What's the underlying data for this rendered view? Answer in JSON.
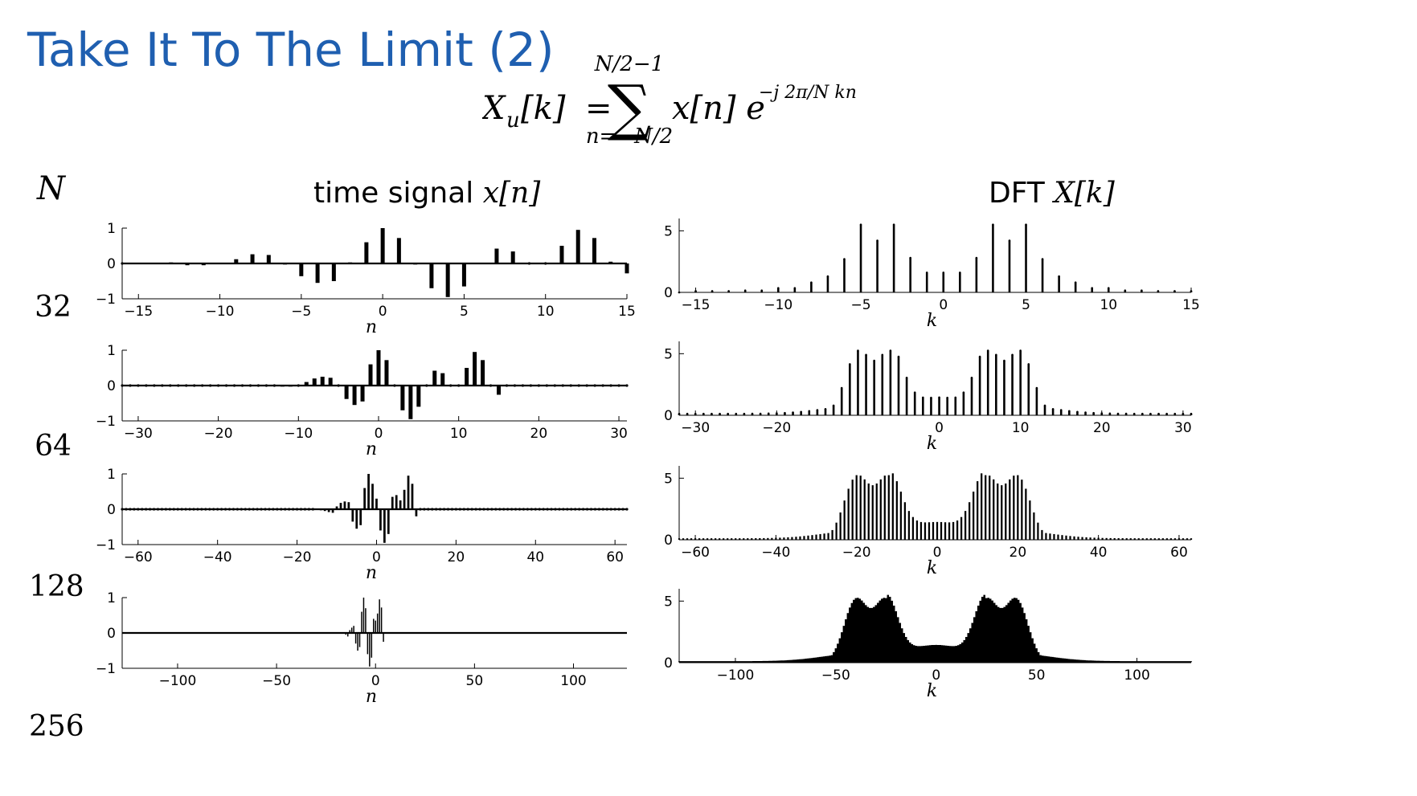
{
  "title": "Take It To The Limit (2)",
  "formula": {
    "lhs_base": "X",
    "lhs_sub": "u",
    "lhs_arg": "[k]",
    "equals": "=",
    "sum_upper": "N/2−1",
    "sum_lower": "n=−N/2",
    "term": "x[n] e",
    "exponent": "−j 2π/N kn"
  },
  "headers": {
    "n_label": "N",
    "time_prefix": "time signal ",
    "time_math": "x[n]",
    "dft_prefix": "DFT ",
    "dft_math": "X[k]"
  },
  "rows": [
    {
      "N": "32"
    },
    {
      "N": "64"
    },
    {
      "N": "128"
    },
    {
      "N": "256"
    }
  ],
  "chart_data": [
    {
      "type": "bar",
      "panel": "time",
      "N": 32,
      "xlabel": "n",
      "ylabel": "",
      "xlim": [
        -16,
        15
      ],
      "ylim": [
        -1,
        1
      ],
      "xticks": [
        -15,
        -10,
        -5,
        0,
        5,
        10,
        15
      ],
      "yticks": [
        -1,
        0,
        1
      ],
      "x": [
        -16,
        -15,
        -14,
        -13,
        -12,
        -11,
        -10,
        -9,
        -8,
        -7,
        -6,
        -5,
        -4,
        -3,
        -2,
        -1,
        0,
        1,
        2,
        3,
        4,
        5,
        6,
        7,
        8,
        9,
        10,
        11,
        12,
        13,
        14,
        15
      ],
      "values": [
        0.0,
        0.02,
        0.02,
        0.03,
        -0.05,
        -0.05,
        0.02,
        0.12,
        0.26,
        0.24,
        -0.03,
        -0.36,
        -0.55,
        -0.5,
        0.03,
        0.6,
        1.0,
        0.72,
        -0.03,
        -0.7,
        -0.95,
        -0.65,
        0.02,
        0.42,
        0.34,
        0.0,
        0.0,
        0.5,
        0.95,
        0.72,
        0.05,
        -0.28
      ]
    },
    {
      "type": "bar",
      "panel": "time",
      "N": 64,
      "xlabel": "n",
      "ylabel": "",
      "xlim": [
        -32,
        31
      ],
      "ylim": [
        -1,
        1
      ],
      "xticks": [
        -30,
        -20,
        -10,
        0,
        10,
        20,
        30
      ],
      "yticks": [
        -1,
        0,
        1
      ],
      "x": [
        -32,
        -31,
        -30,
        -29,
        -28,
        -27,
        -26,
        -25,
        -24,
        -23,
        -22,
        -21,
        -20,
        -19,
        -18,
        -17,
        -16,
        -15,
        -14,
        -13,
        -12,
        -11,
        -10,
        -9,
        -8,
        -7,
        -6,
        -5,
        -4,
        -3,
        -2,
        -1,
        0,
        1,
        2,
        3,
        4,
        5,
        6,
        7,
        8,
        9,
        10,
        11,
        12,
        13,
        14,
        15,
        16,
        17,
        18,
        19,
        20,
        21,
        22,
        23,
        24,
        25,
        26,
        27,
        28,
        29,
        30,
        31
      ],
      "values": [
        0,
        0,
        0,
        0,
        0,
        0,
        0,
        0,
        0,
        0,
        0,
        0,
        0,
        0,
        0,
        0,
        0,
        0,
        0,
        0,
        -0.03,
        -0.03,
        0,
        0.1,
        0.2,
        0.25,
        0.22,
        0,
        -0.38,
        -0.55,
        -0.45,
        0.6,
        1.0,
        0.72,
        0,
        -0.7,
        -0.95,
        -0.6,
        0,
        0.42,
        0.35,
        0,
        0,
        0.5,
        0.95,
        0.72,
        0,
        -0.26,
        0,
        0,
        0,
        0,
        0,
        0,
        0,
        0,
        0,
        0,
        0,
        0,
        0,
        0,
        0,
        0
      ]
    },
    {
      "type": "bar",
      "panel": "time",
      "N": 128,
      "xlabel": "n",
      "ylabel": "",
      "xlim": [
        -64,
        63
      ],
      "ylim": [
        -1,
        1
      ],
      "xticks": [
        -60,
        -40,
        -20,
        0,
        20,
        40,
        60
      ],
      "yticks": [
        -1,
        0,
        1
      ],
      "x": [
        -15,
        -14,
        -13,
        -12,
        -11,
        -10,
        -9,
        -8,
        -7,
        -6,
        -5,
        -4,
        -3,
        -2,
        -1,
        0,
        1,
        2,
        3,
        4,
        5,
        6,
        7,
        8,
        9,
        10,
        11,
        12,
        13,
        14,
        15
      ],
      "values": [
        -0.02,
        -0.03,
        -0.05,
        -0.08,
        -0.1,
        0.08,
        0.18,
        0.22,
        0.2,
        -0.35,
        -0.55,
        -0.45,
        0.6,
        1.0,
        0.72,
        0.3,
        -0.6,
        -0.95,
        -0.7,
        0.35,
        0.4,
        0.25,
        0.55,
        0.95,
        0.72,
        -0.2,
        0,
        0,
        0,
        0,
        0
      ]
    },
    {
      "type": "bar",
      "panel": "time",
      "N": 256,
      "xlabel": "n",
      "ylabel": "",
      "xlim": [
        -128,
        127
      ],
      "ylim": [
        -1,
        1
      ],
      "xticks": [
        -100,
        -50,
        0,
        50,
        100
      ],
      "yticks": [
        -1,
        0,
        1
      ],
      "x": [
        -15,
        -14,
        -13,
        -12,
        -11,
        -10,
        -9,
        -8,
        -7,
        -6,
        -5,
        -4,
        -3,
        -2,
        -1,
        0,
        1,
        2,
        3,
        4,
        5,
        6,
        7,
        8,
        9,
        10,
        11,
        12,
        13,
        14,
        15
      ],
      "values": [
        -0.05,
        -0.1,
        0.08,
        0.15,
        0.2,
        -0.3,
        -0.5,
        -0.4,
        0.6,
        1.0,
        0.7,
        -0.6,
        -0.95,
        -0.7,
        0.4,
        0.35,
        0.55,
        0.95,
        0.72,
        -0.25,
        0,
        0,
        0,
        0,
        0,
        0,
        0,
        0,
        0,
        0,
        0
      ]
    },
    {
      "type": "bar",
      "panel": "dft",
      "N": 32,
      "xlabel": "k",
      "ylabel": "",
      "xlim": [
        -16,
        15
      ],
      "ylim": [
        0,
        6
      ],
      "xticks": [
        -15,
        -10,
        -5,
        0,
        5,
        10,
        15
      ],
      "yticks": [
        0,
        5
      ],
      "x": [
        -16,
        -15,
        -14,
        -13,
        -12,
        -11,
        -10,
        -9,
        -8,
        -7,
        -6,
        -5,
        -4,
        -3,
        -2,
        -1,
        0,
        1,
        2,
        3,
        4,
        5,
        6,
        7,
        8,
        9,
        10,
        11,
        12,
        13,
        14,
        15
      ],
      "values": [
        0.0,
        0.1,
        0.1,
        0.1,
        0.15,
        0.15,
        0.35,
        0.35,
        0.8,
        1.3,
        2.7,
        5.5,
        4.2,
        5.5,
        2.8,
        1.6,
        1.6,
        1.6,
        2.8,
        5.5,
        4.2,
        5.5,
        2.7,
        1.3,
        0.8,
        0.35,
        0.35,
        0.15,
        0.15,
        0.1,
        0.1,
        0.1
      ]
    },
    {
      "type": "bar",
      "panel": "dft",
      "N": 64,
      "xlabel": "k",
      "ylabel": "",
      "xlim": [
        -32,
        31
      ],
      "ylim": [
        0,
        6
      ],
      "xticks": [
        -30,
        -20,
        0,
        10,
        20,
        30
      ],
      "yticks": [
        0,
        5
      ],
      "peaks": [
        -10,
        -6,
        6,
        10
      ],
      "peak_value": 5.5,
      "center_value": 1.6
    },
    {
      "type": "bar",
      "panel": "dft",
      "N": 128,
      "xlabel": "k",
      "ylabel": "",
      "xlim": [
        -64,
        63
      ],
      "ylim": [
        0,
        6
      ],
      "xticks": [
        -60,
        -40,
        -20,
        0,
        20,
        40,
        60
      ],
      "yticks": [
        0,
        5
      ],
      "peaks": [
        -20,
        -12,
        12,
        20
      ],
      "peak_value": 5.5,
      "center_value": 1.6
    },
    {
      "type": "area",
      "panel": "dft",
      "N": 256,
      "xlabel": "k",
      "ylabel": "",
      "xlim": [
        -128,
        127
      ],
      "ylim": [
        0,
        6
      ],
      "xticks": [
        -100,
        -50,
        0,
        50,
        100
      ],
      "yticks": [
        0,
        5
      ],
      "peaks": [
        -40,
        -25,
        25,
        40
      ],
      "peak_value": 5.5,
      "center_value": 1.6
    }
  ]
}
